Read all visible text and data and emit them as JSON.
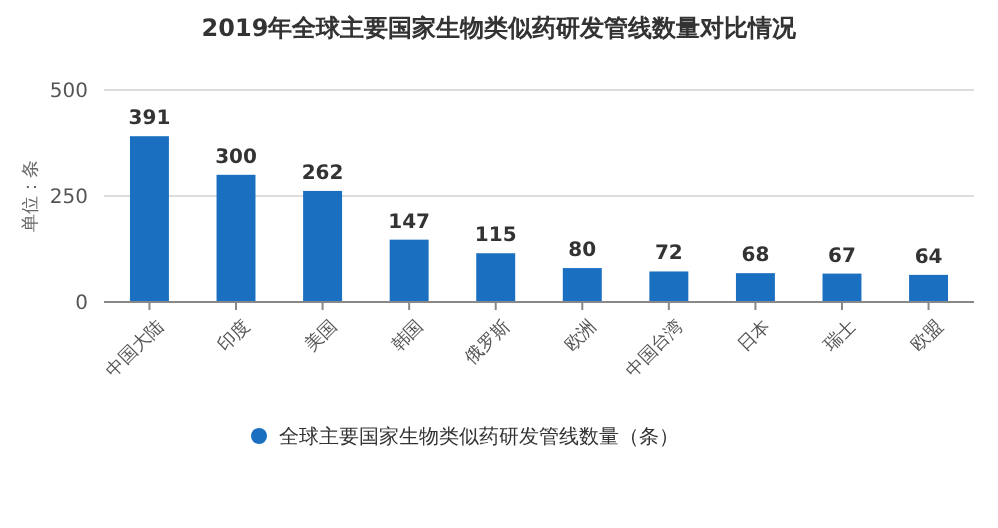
{
  "chart_data": {
    "type": "bar",
    "title": "2019年全球主要国家生物类似药研发管线数量对比情况",
    "ylabel": "单位：条",
    "categories": [
      "中国大陆",
      "印度",
      "美国",
      "韩国",
      "俄罗斯",
      "欧洲",
      "中国台湾",
      "日本",
      "瑞士",
      "欧盟"
    ],
    "series": [
      {
        "name": "全球主要国家生物类似药研发管线数量（条）",
        "color": "#1a6fc0",
        "values": [
          391,
          300,
          262,
          147,
          115,
          80,
          72,
          68,
          67,
          64
        ]
      }
    ],
    "ylim": [
      0,
      500
    ],
    "yticks": [
      0,
      250,
      500
    ],
    "grid": "y",
    "legend": "bottom",
    "data_labels": true
  }
}
